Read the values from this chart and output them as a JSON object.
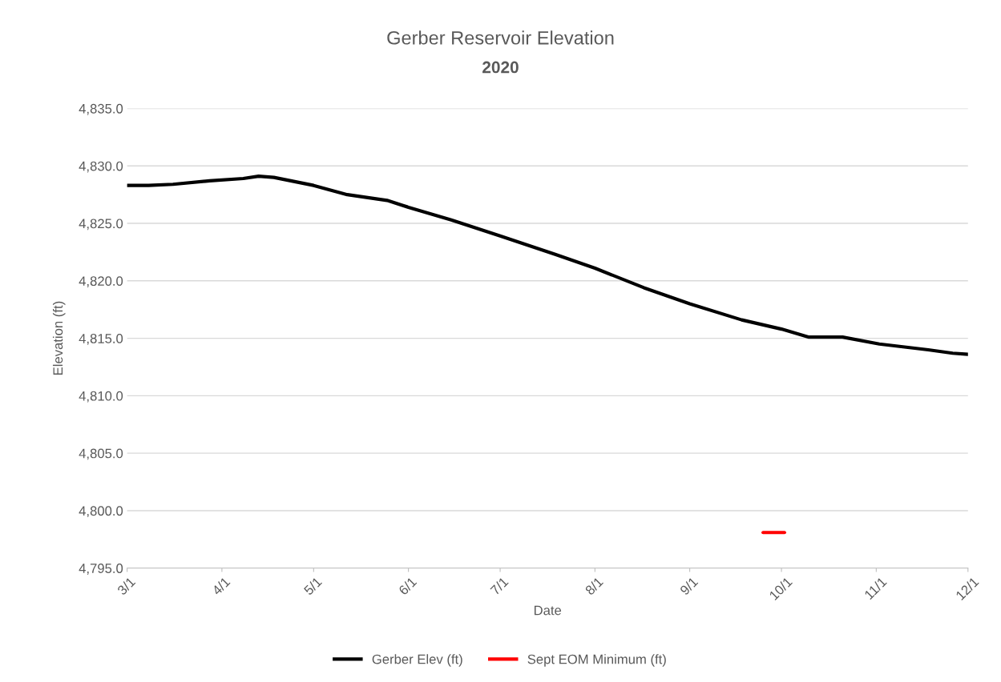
{
  "chart_data": {
    "type": "line",
    "title": "Gerber Reservoir Elevation",
    "subtitle": "2020",
    "xlabel": "Date",
    "ylabel": "Elevation (ft)",
    "series": [
      {
        "name": "Gerber Elev (ft)",
        "color": "#000000",
        "x": [
          "2020-03-01",
          "2020-03-08",
          "2020-03-16",
          "2020-03-28",
          "2020-04-08",
          "2020-04-13",
          "2020-04-18",
          "2020-05-01",
          "2020-05-12",
          "2020-05-25",
          "2020-06-01",
          "2020-06-15",
          "2020-07-01",
          "2020-07-19",
          "2020-08-01",
          "2020-08-17",
          "2020-09-01",
          "2020-09-18",
          "2020-10-01",
          "2020-10-10",
          "2020-10-21",
          "2020-11-02",
          "2020-11-18",
          "2020-11-26",
          "2020-12-01"
        ],
        "values": [
          4828.3,
          4828.3,
          4828.4,
          4828.7,
          4828.9,
          4829.1,
          4829.0,
          4828.3,
          4827.5,
          4827.0,
          4826.4,
          4825.3,
          4823.9,
          4822.3,
          4821.1,
          4819.4,
          4818.0,
          4816.6,
          4815.8,
          4815.1,
          4815.1,
          4814.5,
          4814.0,
          4813.7,
          4813.6
        ]
      },
      {
        "name": "Sept EOM Minimum (ft)",
        "color": "#ff0000",
        "x": [
          "2020-09-25",
          "2020-10-02"
        ],
        "values": [
          4798.1,
          4798.1
        ]
      }
    ],
    "xlim": [
      "2020-03-01",
      "2020-12-01"
    ],
    "xticks": [
      {
        "value": "2020-03-01",
        "label": "3/1"
      },
      {
        "value": "2020-04-01",
        "label": "4/1"
      },
      {
        "value": "2020-05-01",
        "label": "5/1"
      },
      {
        "value": "2020-06-01",
        "label": "6/1"
      },
      {
        "value": "2020-07-01",
        "label": "7/1"
      },
      {
        "value": "2020-08-01",
        "label": "8/1"
      },
      {
        "value": "2020-09-01",
        "label": "9/1"
      },
      {
        "value": "2020-10-01",
        "label": "10/1"
      },
      {
        "value": "2020-11-01",
        "label": "11/1"
      },
      {
        "value": "2020-12-01",
        "label": "12/1"
      }
    ],
    "ylim": [
      4795,
      4835
    ],
    "yticks": [
      {
        "value": 4795,
        "label": "4,795.0"
      },
      {
        "value": 4800,
        "label": "4,800.0"
      },
      {
        "value": 4805,
        "label": "4,805.0"
      },
      {
        "value": 4810,
        "label": "4,810.0"
      },
      {
        "value": 4815,
        "label": "4,815.0"
      },
      {
        "value": 4820,
        "label": "4,820.0"
      },
      {
        "value": 4825,
        "label": "4,825.0"
      },
      {
        "value": 4830,
        "label": "4,830.0"
      },
      {
        "value": 4835,
        "label": "4,835.0"
      }
    ],
    "grid": "y",
    "legend": "bottom",
    "marker": "none",
    "line_style": "solid"
  }
}
